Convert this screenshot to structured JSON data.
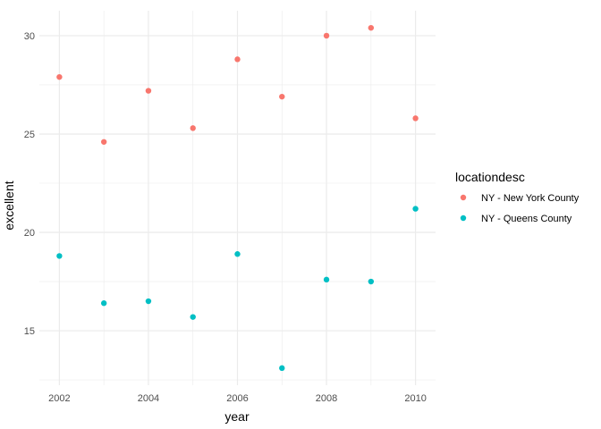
{
  "chart_data": {
    "type": "scatter",
    "title": "",
    "xlabel": "year",
    "ylabel": "excellent",
    "xlim": [
      2001.55,
      2010.45
    ],
    "ylim": [
      12.23,
      31.27
    ],
    "x_ticks": [
      2002,
      2004,
      2006,
      2008,
      2010
    ],
    "x_tick_labels": [
      "2002",
      "2004",
      "2006",
      "2008",
      "2010"
    ],
    "y_ticks": [
      15,
      20,
      25,
      30
    ],
    "y_tick_labels": [
      "15",
      "20",
      "25",
      "30"
    ],
    "grid": true,
    "legend": {
      "title": "locationdesc",
      "position": "right"
    },
    "series": [
      {
        "name": "NY - New York County",
        "color": "#F8766D",
        "x": [
          2002,
          2003,
          2004,
          2005,
          2006,
          2007,
          2008,
          2009,
          2010
        ],
        "y": [
          27.9,
          24.6,
          27.2,
          25.3,
          28.8,
          26.9,
          30.0,
          30.4,
          25.8
        ]
      },
      {
        "name": "NY - Queens County",
        "color": "#00BFC4",
        "x": [
          2002,
          2003,
          2004,
          2005,
          2006,
          2007,
          2008,
          2009,
          2010
        ],
        "y": [
          18.8,
          16.4,
          16.5,
          15.7,
          18.9,
          13.1,
          17.6,
          17.5,
          21.2
        ]
      }
    ]
  }
}
